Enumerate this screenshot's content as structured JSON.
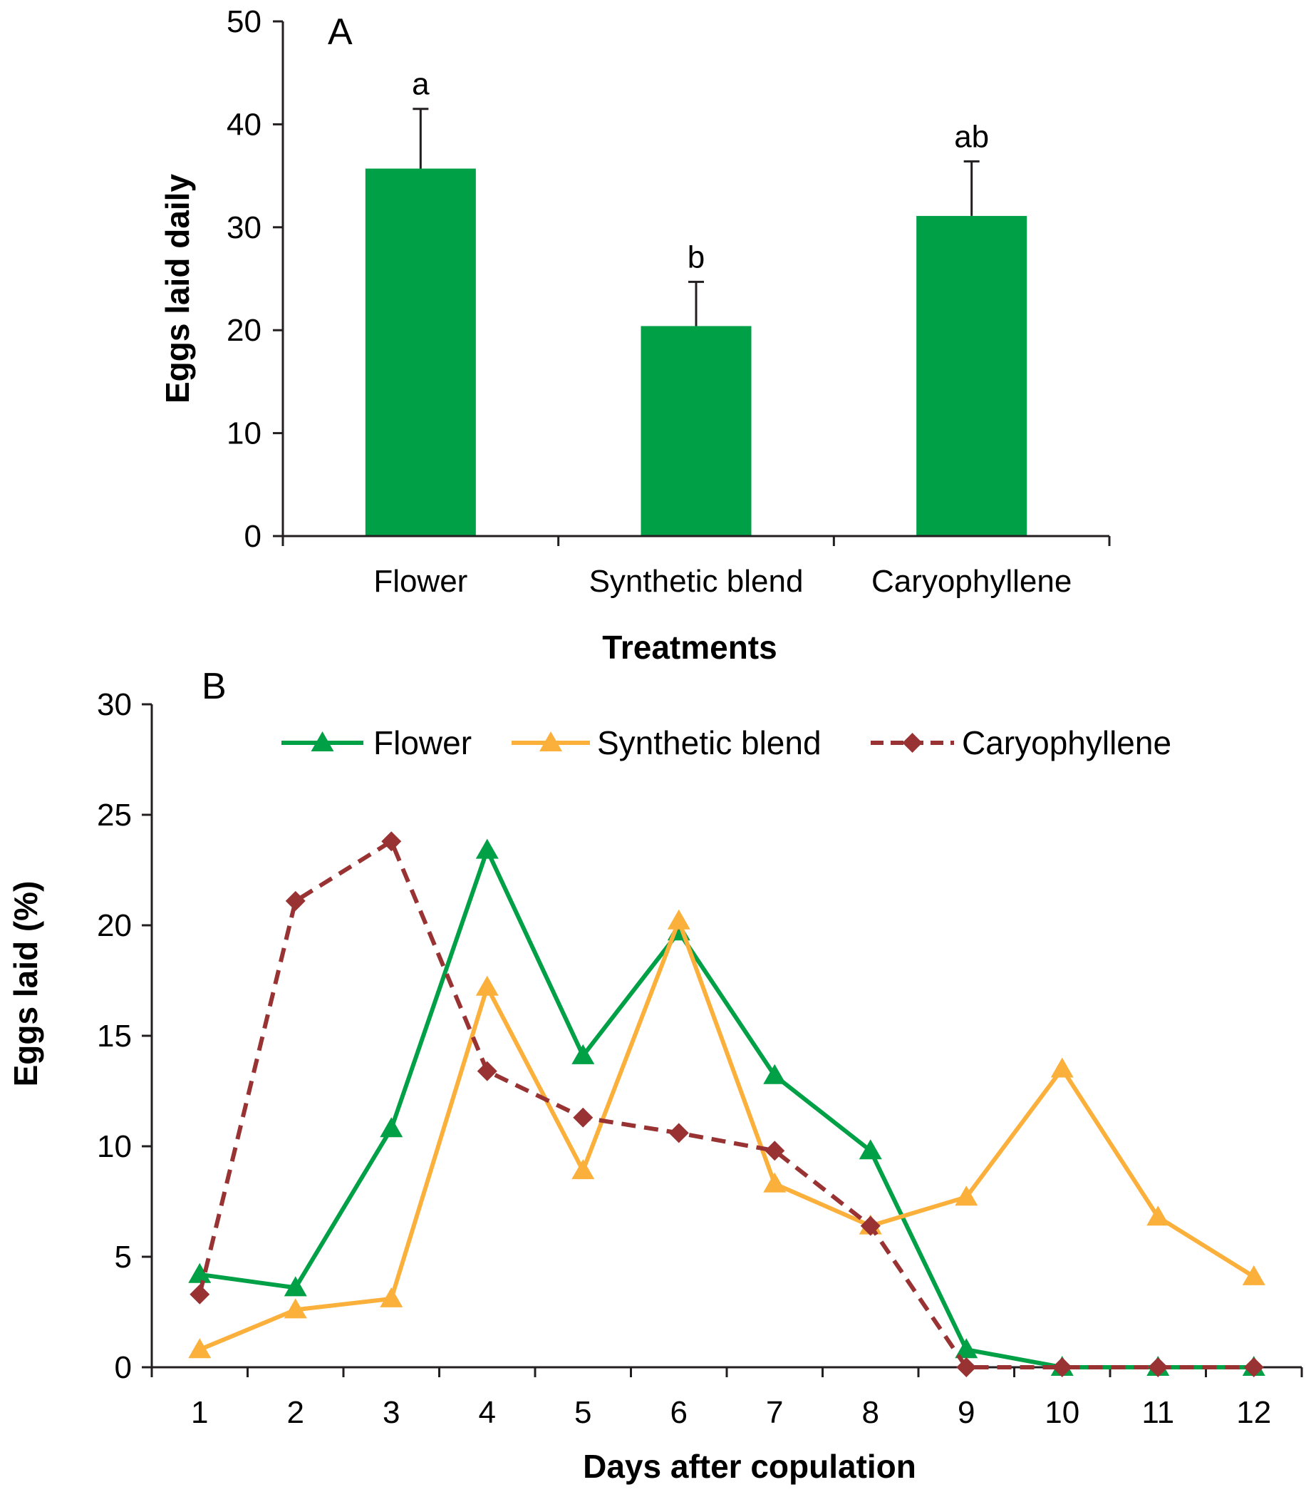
{
  "chart_data": [
    {
      "panel": "A",
      "type": "bar",
      "xlabel": "Treatments",
      "ylabel": "Eggs laid daily",
      "ylim": [
        0,
        50
      ],
      "yticks": [
        0,
        10,
        20,
        30,
        40,
        50
      ],
      "categories": [
        "Flower",
        "Synthetic blend",
        "Caryophyllene"
      ],
      "values": [
        35.7,
        20.4,
        31.1
      ],
      "errors": [
        5.8,
        4.3,
        5.3
      ],
      "significance": [
        "a",
        "b",
        "ab"
      ],
      "bar_color": "#00a046",
      "grid": false
    },
    {
      "panel": "B",
      "type": "line",
      "xlabel": "Days after copulation",
      "ylabel": "Eggs laid (%)",
      "ylim": [
        0,
        30
      ],
      "yticks": [
        0,
        5,
        10,
        15,
        20,
        25,
        30
      ],
      "x": [
        1,
        2,
        3,
        4,
        5,
        6,
        7,
        8,
        9,
        10,
        11,
        12
      ],
      "legend_position": "top",
      "grid": false,
      "series": [
        {
          "name": "Flower",
          "color": "#00a046",
          "marker": "triangle",
          "dash": "solid",
          "values": [
            4.2,
            3.6,
            10.8,
            23.4,
            14.1,
            19.7,
            13.2,
            9.8,
            0.8,
            0,
            0,
            0
          ]
        },
        {
          "name": "Synthetic blend",
          "color": "#fbb03b",
          "marker": "triangle",
          "dash": "solid",
          "values": [
            0.8,
            2.6,
            3.1,
            17.2,
            8.9,
            20.2,
            8.3,
            6.4,
            7.7,
            13.5,
            6.8,
            4.1
          ]
        },
        {
          "name": "Caryophyllene",
          "color": "#993333",
          "marker": "diamond",
          "dash": "dashed",
          "values": [
            3.3,
            21.1,
            23.8,
            13.4,
            11.3,
            10.6,
            9.8,
            6.4,
            0,
            0,
            0,
            0
          ]
        }
      ]
    }
  ]
}
